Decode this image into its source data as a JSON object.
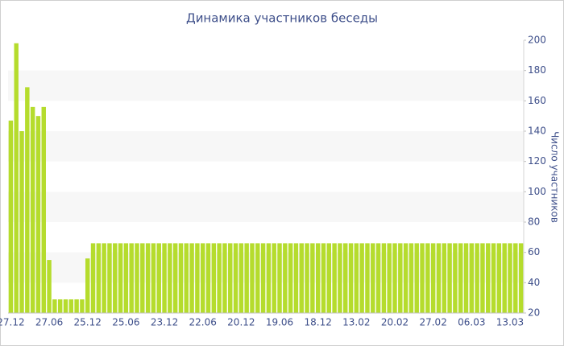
{
  "chart_data": {
    "type": "bar",
    "title": "Динамика участников беседы",
    "y_label": "Число участников",
    "categories": [
      "27.12",
      null,
      null,
      null,
      null,
      null,
      null,
      "27.06",
      null,
      null,
      null,
      null,
      null,
      null,
      "25.12",
      null,
      null,
      null,
      null,
      null,
      null,
      "25.06",
      null,
      null,
      null,
      null,
      null,
      null,
      "23.12",
      null,
      null,
      null,
      null,
      null,
      null,
      "22.06",
      null,
      null,
      null,
      null,
      null,
      null,
      "20.12",
      null,
      null,
      null,
      null,
      null,
      null,
      "19.06",
      null,
      null,
      null,
      null,
      null,
      null,
      "18.12",
      null,
      null,
      null,
      null,
      null,
      null,
      "13.02",
      null,
      null,
      null,
      null,
      null,
      null,
      "20.02",
      null,
      null,
      null,
      null,
      null,
      null,
      "27.02",
      null,
      null,
      null,
      null,
      null,
      null,
      "06.03",
      null,
      null,
      null,
      null,
      null,
      null,
      "13.03",
      null,
      null
    ],
    "values": [
      147,
      198,
      140,
      169,
      156,
      150,
      156,
      55,
      29,
      29,
      29,
      29,
      29,
      29,
      56,
      66,
      66,
      66,
      66,
      66,
      66,
      66,
      66,
      66,
      66,
      66,
      66,
      66,
      66,
      66,
      66,
      66,
      66,
      66,
      66,
      66,
      66,
      66,
      66,
      66,
      66,
      66,
      66,
      66,
      66,
      66,
      66,
      66,
      66,
      66,
      66,
      66,
      66,
      66,
      66,
      66,
      66,
      66,
      66,
      66,
      66,
      66,
      66,
      66,
      66,
      66,
      66,
      66,
      66,
      66,
      66,
      66,
      66,
      66,
      66,
      66,
      66,
      66,
      66,
      66,
      66,
      66,
      66,
      66,
      66,
      66,
      66,
      66,
      66,
      66,
      66,
      66,
      66,
      66
    ],
    "color": "#b5dc2d",
    "ylim": [
      20,
      200
    ],
    "yticks": [
      20,
      40,
      60,
      80,
      100,
      120,
      140,
      160,
      180,
      200
    ],
    "grid": true
  }
}
